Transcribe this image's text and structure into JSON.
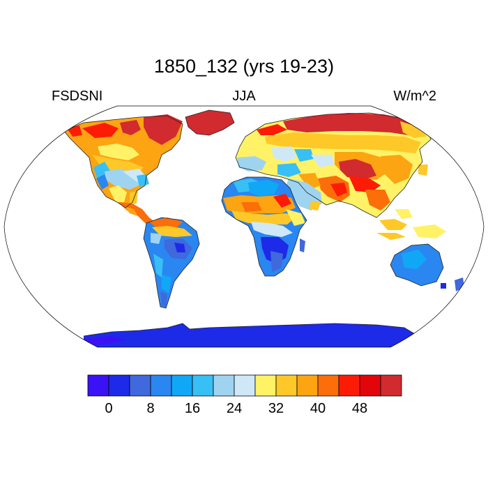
{
  "title": "1850_132 (yrs 19-23)",
  "left_string": "FSDSNI",
  "center_string": "JJA",
  "right_string": "W/m^2",
  "colorbar": {
    "colors": [
      "#3b12f5",
      "#1d2ae8",
      "#3f69dc",
      "#2a86f0",
      "#11a7f7",
      "#38bff5",
      "#9fd4f0",
      "#cfe8f7",
      "#fff266",
      "#fec828",
      "#fca412",
      "#fb6e09",
      "#fc1c06",
      "#e2060a",
      "#d12a2f"
    ],
    "tick_labels": [
      "0",
      "8",
      "16",
      "24",
      "32",
      "40",
      "48"
    ]
  }
}
